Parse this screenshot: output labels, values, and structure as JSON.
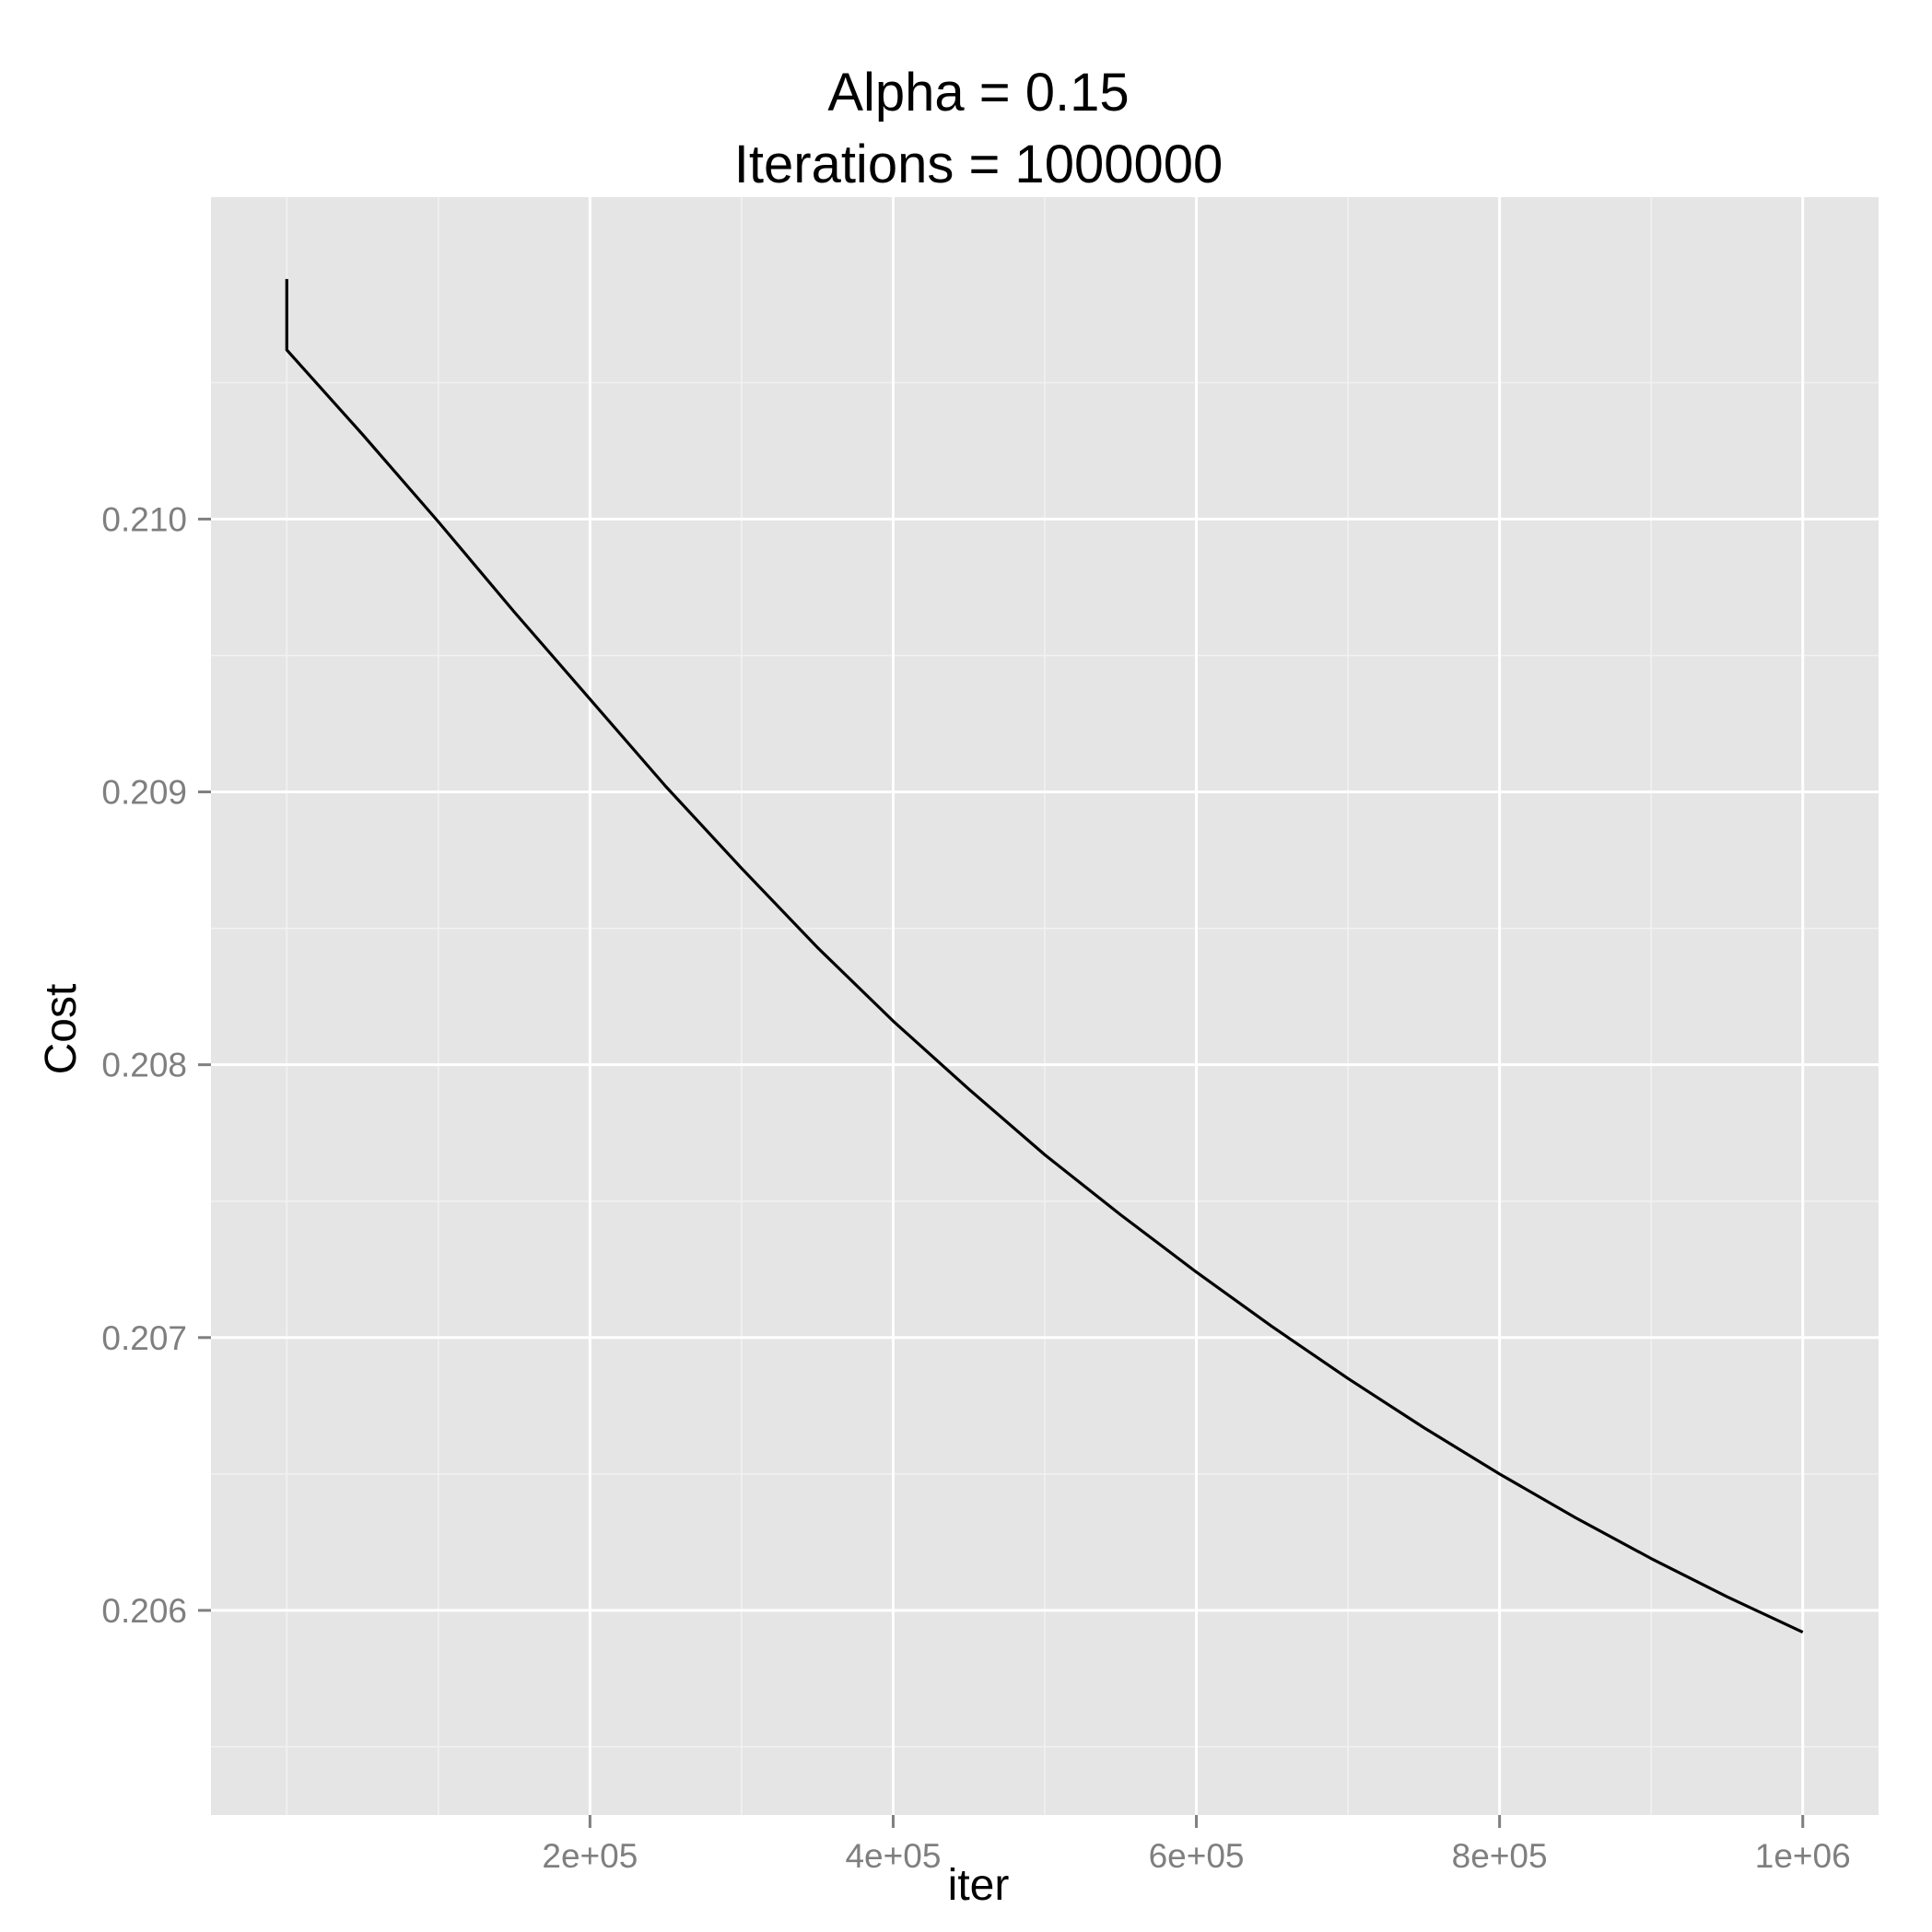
{
  "chart_data": {
    "type": "line",
    "title": "Alpha = 0.15",
    "subtitle": "Iterations = 1000000",
    "xlabel": "iter",
    "ylabel": "Cost",
    "xlim": [
      -50000,
      1050000
    ],
    "ylim": [
      0.20525,
      0.21118
    ],
    "x_ticks": [
      200000,
      400000,
      600000,
      800000,
      1000000
    ],
    "x_tick_labels": [
      "2e+05",
      "4e+05",
      "6e+05",
      "8e+05",
      "1e+06"
    ],
    "x_minor_ticks": [
      0,
      100000,
      300000,
      500000,
      700000,
      900000
    ],
    "y_ticks": [
      0.206,
      0.207,
      0.208,
      0.209,
      0.21
    ],
    "y_tick_labels": [
      "0.206",
      "0.207",
      "0.208",
      "0.209",
      "0.210"
    ],
    "y_minor_ticks": [
      0.2055,
      0.2065,
      0.2075,
      0.2085,
      0.2095,
      0.2105
    ],
    "grid": true,
    "legend": "none",
    "colors": {
      "panel": "#e5e5e5",
      "grid_major": "#ffffff",
      "grid_minor": "#f2f2f2",
      "line": "#000000",
      "ticks": "#7f7f7f"
    },
    "series": [
      {
        "x": [
          0,
          1,
          50000,
          100000,
          150000,
          200000,
          250000,
          300000,
          350000,
          400000,
          450000,
          500000,
          550000,
          600000,
          650000,
          700000,
          750000,
          800000,
          850000,
          900000,
          950000,
          1000000
        ],
        "y": [
          0.21088,
          0.21062,
          0.21031,
          0.20999,
          0.20966,
          0.20934,
          0.20902,
          0.20872,
          0.20843,
          0.20816,
          0.20791,
          0.20767,
          0.20745,
          0.20724,
          0.20704,
          0.20685,
          0.20667,
          0.2065,
          0.20634,
          0.20619,
          0.20605,
          0.20592
        ]
      }
    ]
  }
}
